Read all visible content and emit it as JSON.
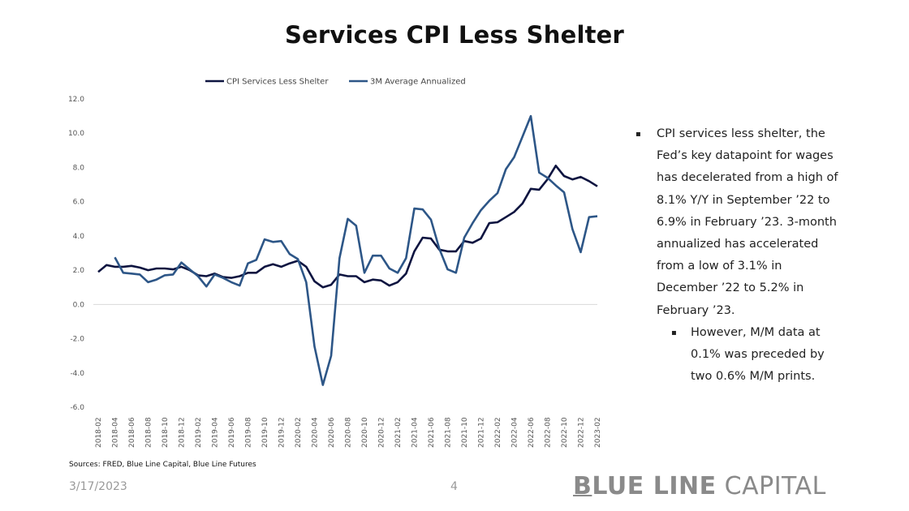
{
  "slide": {
    "title": "Services CPI Less Shelter",
    "sources": "Sources: FRED, Blue Line Capital, Blue Line Futures",
    "date": "3/17/2023",
    "page_number": "4",
    "logo": {
      "bold_part": "BLUE LINE",
      "light_part": " CAPITAL"
    }
  },
  "commentary": {
    "bullets": [
      "CPI services less shelter, the Fed’s key datapoint for wages has decelerated from a high of 8.1% Y/Y in September ’22 to 6.9% in February ’23. 3-month annualized has accelerated from a low of 3.1% in December ’22 to 5.2% in February ’23."
    ],
    "sub_bullets": [
      "However, M/M data at 0.1% was preceded by two 0.6% M/M prints."
    ],
    "bullet_symbol": "▪"
  },
  "chart_data": {
    "type": "line",
    "title": "Services CPI Less Shelter",
    "xlabel": "",
    "ylabel": "",
    "ylim": [
      -6.0,
      12.0
    ],
    "yticks": [
      "12.0",
      "10.0",
      "8.0",
      "6.0",
      "4.0",
      "2.0",
      "0.0",
      "-2.0",
      "-4.0",
      "-6.0"
    ],
    "ytick_values": [
      12,
      10,
      8,
      6,
      4,
      2,
      0,
      -2,
      -4,
      -6
    ],
    "grid": false,
    "legend_position": "top-center",
    "x": [
      "2018-02",
      "2018-03",
      "2018-04",
      "2018-05",
      "2018-06",
      "2018-07",
      "2018-08",
      "2018-09",
      "2018-10",
      "2018-11",
      "2018-12",
      "2019-01",
      "2019-02",
      "2019-03",
      "2019-04",
      "2019-05",
      "2019-06",
      "2019-07",
      "2019-08",
      "2019-09",
      "2019-10",
      "2019-11",
      "2019-12",
      "2020-01",
      "2020-02",
      "2020-03",
      "2020-04",
      "2020-05",
      "2020-06",
      "2020-07",
      "2020-08",
      "2020-09",
      "2020-10",
      "2020-11",
      "2020-12",
      "2021-01",
      "2021-02",
      "2021-03",
      "2021-04",
      "2021-05",
      "2021-06",
      "2021-07",
      "2021-08",
      "2021-09",
      "2021-10",
      "2021-11",
      "2021-12",
      "2022-01",
      "2022-02",
      "2022-03",
      "2022-04",
      "2022-05",
      "2022-06",
      "2022-07",
      "2022-08",
      "2022-09",
      "2022-10",
      "2022-11",
      "2022-12",
      "2023-01",
      "2023-02"
    ],
    "xtick_labels": [
      "2018-02",
      "2018-04",
      "2018-06",
      "2018-08",
      "2018-10",
      "2018-12",
      "2019-02",
      "2019-04",
      "2019-06",
      "2019-08",
      "2019-10",
      "2019-12",
      "2020-02",
      "2020-04",
      "2020-06",
      "2020-08",
      "2020-10",
      "2020-12",
      "2021-02",
      "2021-04",
      "2021-06",
      "2021-08",
      "2021-10",
      "2021-12",
      "2022-02",
      "2022-04",
      "2022-06",
      "2022-08",
      "2022-10",
      "2022-12",
      "2023-02"
    ],
    "series": [
      {
        "name": "CPI Services Less Shelter",
        "color": "#0d1440",
        "values": [
          1.9,
          2.3,
          2.2,
          2.2,
          2.25,
          2.15,
          2.0,
          2.1,
          2.1,
          2.05,
          2.2,
          2.0,
          1.7,
          1.65,
          1.8,
          1.6,
          1.55,
          1.65,
          1.85,
          1.85,
          2.2,
          2.35,
          2.2,
          2.4,
          2.55,
          2.2,
          1.35,
          1.0,
          1.15,
          1.75,
          1.65,
          1.65,
          1.3,
          1.45,
          1.4,
          1.1,
          1.3,
          1.8,
          3.1,
          3.9,
          3.85,
          3.2,
          3.1,
          3.1,
          3.7,
          3.6,
          3.85,
          4.75,
          4.8,
          5.1,
          5.4,
          5.9,
          6.75,
          6.7,
          7.3,
          8.1,
          7.5,
          7.3,
          7.45,
          7.2,
          6.9
        ]
      },
      {
        "name": "3M Average Annualized",
        "color": "#2d5687",
        "values": [
          null,
          null,
          2.75,
          1.85,
          1.8,
          1.75,
          1.3,
          1.45,
          1.7,
          1.75,
          2.45,
          2.05,
          1.65,
          1.05,
          1.75,
          1.55,
          1.3,
          1.1,
          2.4,
          2.6,
          3.8,
          3.65,
          3.7,
          2.95,
          2.65,
          1.3,
          -2.45,
          -4.7,
          -3.0,
          2.7,
          5.0,
          4.6,
          1.85,
          2.85,
          2.85,
          2.1,
          1.85,
          2.7,
          5.6,
          5.55,
          4.95,
          3.25,
          2.05,
          1.85,
          3.9,
          4.75,
          5.5,
          6.05,
          6.5,
          7.9,
          8.6,
          9.8,
          11.0,
          7.7,
          7.4,
          6.95,
          6.55,
          4.4,
          3.05,
          5.1,
          5.15
        ]
      }
    ]
  }
}
